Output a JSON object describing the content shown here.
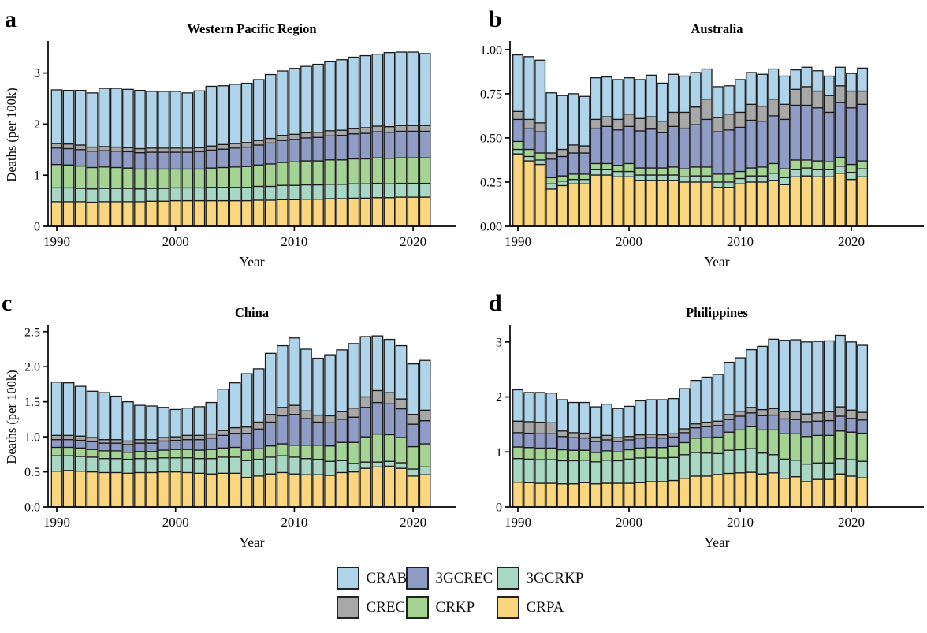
{
  "page": {
    "background": "#ffffff"
  },
  "colors": {
    "CRAB": "#AFD3E8",
    "3GCREC": "#8F9DC6",
    "3GCRKP": "#A8D8C5",
    "CREC": "#A8A8A8",
    "CRKP": "#A5D394",
    "CRPA": "#FAD77E",
    "bar_outline": "#1A1A1A"
  },
  "legend": {
    "order": [
      "CRAB",
      "3GCREC",
      "3GCRKP",
      "CREC",
      "CRKP",
      "CRPA"
    ]
  },
  "chart_data": [
    {
      "type": "bar",
      "stacked": true,
      "panel_letter": "a",
      "title": "Western Pacific Region",
      "xlabel": "Year",
      "ylabel": "Deaths (per 100k)",
      "x_range": [
        1990,
        2021
      ],
      "xticks": [
        1990,
        2000,
        2010,
        2020
      ],
      "yticks": [
        0,
        1,
        2,
        3
      ],
      "ytick_labels": [
        "0",
        "1",
        "2",
        "3"
      ],
      "ylim": [
        0,
        3.58
      ],
      "grid": false,
      "series": [
        {
          "name": "CRPA",
          "values": [
            0.48,
            0.48,
            0.48,
            0.47,
            0.48,
            0.48,
            0.48,
            0.48,
            0.49,
            0.49,
            0.5,
            0.5,
            0.5,
            0.5,
            0.5,
            0.5,
            0.5,
            0.51,
            0.51,
            0.52,
            0.52,
            0.53,
            0.53,
            0.54,
            0.54,
            0.55,
            0.55,
            0.56,
            0.56,
            0.57,
            0.57,
            0.57
          ]
        },
        {
          "name": "3GCRKP",
          "values": [
            0.27,
            0.27,
            0.26,
            0.26,
            0.26,
            0.26,
            0.26,
            0.25,
            0.25,
            0.25,
            0.25,
            0.25,
            0.25,
            0.26,
            0.26,
            0.26,
            0.26,
            0.27,
            0.27,
            0.28,
            0.28,
            0.28,
            0.28,
            0.28,
            0.28,
            0.28,
            0.28,
            0.28,
            0.27,
            0.27,
            0.27,
            0.27
          ]
        },
        {
          "name": "CRKP",
          "values": [
            0.46,
            0.45,
            0.44,
            0.42,
            0.42,
            0.41,
            0.4,
            0.39,
            0.38,
            0.38,
            0.37,
            0.37,
            0.37,
            0.38,
            0.39,
            0.4,
            0.41,
            0.42,
            0.44,
            0.45,
            0.46,
            0.47,
            0.47,
            0.48,
            0.48,
            0.49,
            0.49,
            0.5,
            0.5,
            0.5,
            0.5,
            0.5
          ]
        },
        {
          "name": "3GCREC",
          "values": [
            0.32,
            0.32,
            0.32,
            0.32,
            0.32,
            0.32,
            0.32,
            0.32,
            0.33,
            0.33,
            0.33,
            0.33,
            0.34,
            0.35,
            0.36,
            0.37,
            0.38,
            0.39,
            0.41,
            0.43,
            0.44,
            0.45,
            0.46,
            0.47,
            0.48,
            0.49,
            0.5,
            0.51,
            0.51,
            0.52,
            0.52,
            0.52
          ]
        },
        {
          "name": "CREC",
          "values": [
            0.09,
            0.09,
            0.09,
            0.08,
            0.08,
            0.08,
            0.08,
            0.08,
            0.08,
            0.08,
            0.08,
            0.08,
            0.08,
            0.08,
            0.09,
            0.09,
            0.09,
            0.09,
            0.09,
            0.1,
            0.1,
            0.1,
            0.1,
            0.1,
            0.1,
            0.1,
            0.11,
            0.11,
            0.11,
            0.11,
            0.11,
            0.11
          ]
        },
        {
          "name": "CRAB",
          "values": [
            1.05,
            1.05,
            1.07,
            1.06,
            1.14,
            1.15,
            1.14,
            1.14,
            1.11,
            1.11,
            1.11,
            1.08,
            1.11,
            1.17,
            1.15,
            1.16,
            1.16,
            1.19,
            1.25,
            1.26,
            1.29,
            1.3,
            1.33,
            1.35,
            1.38,
            1.4,
            1.41,
            1.41,
            1.45,
            1.44,
            1.44,
            1.41
          ]
        }
      ]
    },
    {
      "type": "bar",
      "stacked": true,
      "panel_letter": "b",
      "title": "Australia",
      "xlabel": "Year",
      "ylabel": "",
      "x_range": [
        1990,
        2021
      ],
      "xticks": [
        1990,
        2000,
        2010,
        2020
      ],
      "yticks": [
        0,
        0.25,
        0.5,
        0.75,
        1.0
      ],
      "ytick_labels": [
        "0.00",
        "0.25",
        "0.50",
        "0.75",
        "1.00"
      ],
      "ylim": [
        0,
        1.035
      ],
      "grid": false,
      "series": [
        {
          "name": "CRPA",
          "values": [
            0.41,
            0.37,
            0.35,
            0.21,
            0.23,
            0.24,
            0.24,
            0.29,
            0.29,
            0.28,
            0.28,
            0.26,
            0.26,
            0.26,
            0.26,
            0.25,
            0.25,
            0.25,
            0.22,
            0.22,
            0.24,
            0.25,
            0.25,
            0.26,
            0.235,
            0.28,
            0.285,
            0.28,
            0.28,
            0.3,
            0.265,
            0.28
          ]
        },
        {
          "name": "3GCRKP",
          "values": [
            0.025,
            0.025,
            0.025,
            0.03,
            0.025,
            0.025,
            0.025,
            0.03,
            0.03,
            0.03,
            0.03,
            0.03,
            0.03,
            0.03,
            0.03,
            0.03,
            0.035,
            0.035,
            0.03,
            0.03,
            0.03,
            0.035,
            0.035,
            0.04,
            0.04,
            0.04,
            0.045,
            0.04,
            0.04,
            0.04,
            0.04,
            0.045
          ]
        },
        {
          "name": "CRKP",
          "values": [
            0.045,
            0.04,
            0.04,
            0.035,
            0.03,
            0.03,
            0.03,
            0.035,
            0.035,
            0.035,
            0.045,
            0.04,
            0.04,
            0.04,
            0.045,
            0.045,
            0.05,
            0.05,
            0.045,
            0.045,
            0.04,
            0.045,
            0.05,
            0.055,
            0.05,
            0.055,
            0.045,
            0.05,
            0.045,
            0.05,
            0.045,
            0.045
          ]
        },
        {
          "name": "3GCREC",
          "values": [
            0.125,
            0.12,
            0.12,
            0.105,
            0.11,
            0.12,
            0.12,
            0.2,
            0.21,
            0.2,
            0.21,
            0.21,
            0.22,
            0.2,
            0.23,
            0.23,
            0.24,
            0.27,
            0.24,
            0.25,
            0.25,
            0.27,
            0.26,
            0.27,
            0.28,
            0.31,
            0.31,
            0.3,
            0.28,
            0.31,
            0.32,
            0.32
          ]
        },
        {
          "name": "CREC",
          "values": [
            0.045,
            0.05,
            0.05,
            0.035,
            0.04,
            0.045,
            0.04,
            0.05,
            0.055,
            0.06,
            0.07,
            0.07,
            0.07,
            0.065,
            0.08,
            0.09,
            0.1,
            0.115,
            0.08,
            0.09,
            0.085,
            0.09,
            0.085,
            0.095,
            0.085,
            0.09,
            0.105,
            0.095,
            0.095,
            0.095,
            0.095,
            0.075
          ]
        },
        {
          "name": "CRAB",
          "values": [
            0.32,
            0.355,
            0.355,
            0.34,
            0.305,
            0.29,
            0.28,
            0.235,
            0.225,
            0.225,
            0.205,
            0.22,
            0.235,
            0.215,
            0.215,
            0.205,
            0.195,
            0.17,
            0.175,
            0.16,
            0.185,
            0.18,
            0.18,
            0.17,
            0.16,
            0.11,
            0.11,
            0.115,
            0.11,
            0.105,
            0.1,
            0.13
          ]
        }
      ]
    },
    {
      "type": "bar",
      "stacked": true,
      "panel_letter": "c",
      "title": "China",
      "xlabel": "Year",
      "ylabel": "Deaths (per 100k)",
      "x_range": [
        1990,
        2021
      ],
      "xticks": [
        1990,
        2000,
        2010,
        2020
      ],
      "yticks": [
        0,
        0.5,
        1.0,
        1.5,
        2.0,
        2.5
      ],
      "ytick_labels": [
        "0.0",
        "0.5",
        "1.0",
        "1.5",
        "2.0",
        "2.5"
      ],
      "ylim": [
        0,
        2.565
      ],
      "grid": false,
      "series": [
        {
          "name": "CRPA",
          "values": [
            0.51,
            0.52,
            0.51,
            0.5,
            0.49,
            0.49,
            0.48,
            0.49,
            0.49,
            0.5,
            0.5,
            0.49,
            0.48,
            0.47,
            0.48,
            0.48,
            0.42,
            0.44,
            0.47,
            0.49,
            0.47,
            0.46,
            0.46,
            0.45,
            0.49,
            0.5,
            0.55,
            0.57,
            0.58,
            0.55,
            0.44,
            0.46
          ]
        },
        {
          "name": "3GCRKP",
          "values": [
            0.22,
            0.21,
            0.21,
            0.21,
            0.2,
            0.2,
            0.2,
            0.2,
            0.2,
            0.2,
            0.2,
            0.21,
            0.21,
            0.22,
            0.23,
            0.23,
            0.24,
            0.24,
            0.24,
            0.24,
            0.24,
            0.23,
            0.22,
            0.2,
            0.17,
            0.12,
            0.09,
            0.07,
            0.07,
            0.08,
            0.1,
            0.11
          ]
        },
        {
          "name": "CRKP",
          "values": [
            0.12,
            0.12,
            0.12,
            0.11,
            0.11,
            0.11,
            0.1,
            0.1,
            0.1,
            0.11,
            0.12,
            0.12,
            0.12,
            0.13,
            0.13,
            0.14,
            0.15,
            0.15,
            0.16,
            0.17,
            0.17,
            0.19,
            0.2,
            0.22,
            0.26,
            0.3,
            0.36,
            0.4,
            0.38,
            0.36,
            0.32,
            0.33
          ]
        },
        {
          "name": "3GCREC",
          "values": [
            0.11,
            0.11,
            0.11,
            0.11,
            0.11,
            0.11,
            0.11,
            0.12,
            0.12,
            0.13,
            0.13,
            0.14,
            0.15,
            0.16,
            0.18,
            0.2,
            0.24,
            0.28,
            0.34,
            0.4,
            0.44,
            0.38,
            0.33,
            0.33,
            0.33,
            0.36,
            0.42,
            0.45,
            0.44,
            0.41,
            0.32,
            0.33
          ]
        },
        {
          "name": "CREC",
          "values": [
            0.06,
            0.06,
            0.06,
            0.06,
            0.05,
            0.05,
            0.05,
            0.05,
            0.05,
            0.05,
            0.05,
            0.06,
            0.06,
            0.06,
            0.07,
            0.08,
            0.09,
            0.1,
            0.11,
            0.12,
            0.13,
            0.11,
            0.1,
            0.1,
            0.11,
            0.13,
            0.15,
            0.17,
            0.16,
            0.14,
            0.14,
            0.15
          ]
        },
        {
          "name": "CRAB",
          "values": [
            0.76,
            0.75,
            0.71,
            0.66,
            0.67,
            0.62,
            0.56,
            0.49,
            0.48,
            0.43,
            0.39,
            0.39,
            0.41,
            0.45,
            0.59,
            0.64,
            0.76,
            0.76,
            0.87,
            0.88,
            0.96,
            0.88,
            0.81,
            0.87,
            0.88,
            0.92,
            0.86,
            0.78,
            0.76,
            0.76,
            0.72,
            0.71
          ]
        }
      ]
    },
    {
      "type": "bar",
      "stacked": true,
      "panel_letter": "d",
      "title": "Philippines",
      "xlabel": "Year",
      "ylabel": "",
      "x_range": [
        1990,
        2021
      ],
      "xticks": [
        1990,
        2000,
        2010,
        2020
      ],
      "yticks": [
        0,
        1,
        2,
        3
      ],
      "ytick_labels": [
        "0",
        "1",
        "2",
        "3"
      ],
      "ylim": [
        0,
        3.27
      ],
      "grid": false,
      "series": [
        {
          "name": "CRPA",
          "values": [
            0.45,
            0.44,
            0.43,
            0.43,
            0.42,
            0.42,
            0.44,
            0.42,
            0.43,
            0.43,
            0.43,
            0.44,
            0.46,
            0.46,
            0.48,
            0.52,
            0.56,
            0.56,
            0.59,
            0.61,
            0.62,
            0.63,
            0.6,
            0.62,
            0.52,
            0.55,
            0.46,
            0.5,
            0.5,
            0.6,
            0.56,
            0.53
          ]
        },
        {
          "name": "3GCRKP",
          "values": [
            0.43,
            0.43,
            0.43,
            0.43,
            0.42,
            0.42,
            0.41,
            0.4,
            0.42,
            0.41,
            0.44,
            0.45,
            0.44,
            0.43,
            0.42,
            0.43,
            0.43,
            0.42,
            0.38,
            0.42,
            0.42,
            0.43,
            0.38,
            0.33,
            0.35,
            0.3,
            0.32,
            0.3,
            0.3,
            0.28,
            0.3,
            0.3
          ]
        },
        {
          "name": "CRKP",
          "values": [
            0.21,
            0.21,
            0.21,
            0.21,
            0.2,
            0.19,
            0.18,
            0.17,
            0.17,
            0.16,
            0.17,
            0.18,
            0.18,
            0.19,
            0.2,
            0.22,
            0.26,
            0.28,
            0.3,
            0.33,
            0.36,
            0.4,
            0.42,
            0.45,
            0.46,
            0.48,
            0.5,
            0.5,
            0.5,
            0.5,
            0.5,
            0.51
          ]
        },
        {
          "name": "3GCREC",
          "values": [
            0.26,
            0.26,
            0.26,
            0.26,
            0.24,
            0.23,
            0.22,
            0.2,
            0.2,
            0.19,
            0.18,
            0.18,
            0.18,
            0.17,
            0.17,
            0.18,
            0.19,
            0.2,
            0.21,
            0.23,
            0.25,
            0.25,
            0.26,
            0.27,
            0.27,
            0.26,
            0.27,
            0.26,
            0.27,
            0.27,
            0.25,
            0.24
          ]
        },
        {
          "name": "CREC",
          "values": [
            0.21,
            0.21,
            0.21,
            0.2,
            0.1,
            0.09,
            0.09,
            0.08,
            0.08,
            0.07,
            0.06,
            0.06,
            0.06,
            0.06,
            0.06,
            0.07,
            0.07,
            0.08,
            0.08,
            0.09,
            0.09,
            0.1,
            0.11,
            0.12,
            0.13,
            0.14,
            0.14,
            0.15,
            0.16,
            0.17,
            0.15,
            0.14
          ]
        },
        {
          "name": "CRAB",
          "values": [
            0.57,
            0.53,
            0.54,
            0.54,
            0.57,
            0.55,
            0.56,
            0.55,
            0.57,
            0.53,
            0.55,
            0.62,
            0.63,
            0.64,
            0.64,
            0.73,
            0.79,
            0.82,
            0.85,
            0.95,
            0.97,
            1.05,
            1.15,
            1.26,
            1.3,
            1.31,
            1.31,
            1.3,
            1.29,
            1.3,
            1.24,
            1.22
          ]
        }
      ]
    }
  ]
}
